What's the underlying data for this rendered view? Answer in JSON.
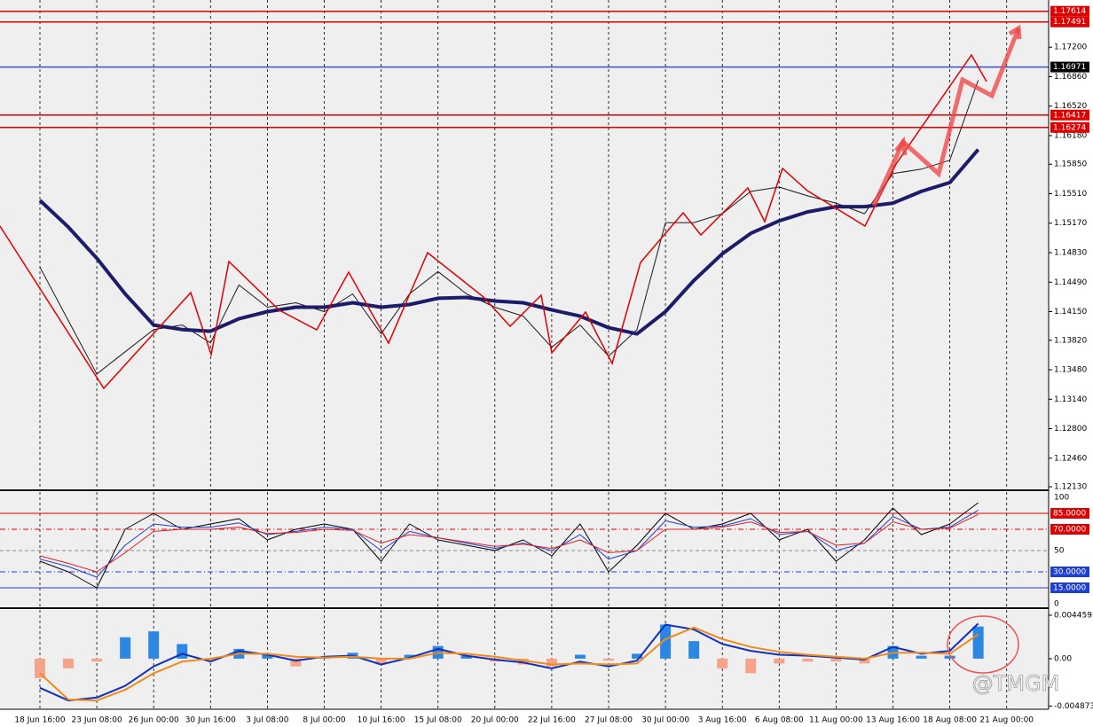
{
  "chart_data": [
    {
      "type": "line",
      "categories": [
        "18 Jun 16:00",
        null,
        "23 Jun 08:00",
        null,
        "26 Jun 00:00",
        null,
        "30 Jun 16:00",
        null,
        "3 Jul 08:00",
        null,
        "8 Jul 00:00",
        null,
        "10 Jul 16:00",
        null,
        "15 Jul 08:00",
        null,
        "20 Jul 00:00",
        null,
        "22 Jul 16:00",
        null,
        "27 Jul 08:00",
        null,
        "30 Jul 00:00",
        null,
        "3 Aug 16:00",
        null,
        "6 Aug 08:00",
        null,
        "11 Aug 00:00",
        null,
        "13 Aug 16:00",
        null,
        "18 Aug 08:00",
        null,
        "21 Aug 00:00"
      ],
      "series": [
        {
          "color": "#1a1a1a",
          "values": [
            1.14663,
            1.14047,
            1.13431,
            1.13687,
            1.13944,
            1.13996,
            1.1379,
            1.14458,
            1.14201,
            1.14252,
            1.1415,
            1.14355,
            1.13893,
            1.14355,
            1.14612,
            1.14355,
            1.14201,
            1.14098,
            1.13739,
            1.13996,
            1.13636,
            1.13944,
            1.15177,
            1.15177,
            1.15279,
            1.15536,
            1.15587,
            1.15485,
            1.15402,
            1.15279,
            1.15742,
            1.15793,
            1.15896,
            1.1682,
            null
          ]
        },
        {
          "color": "#1c1c6a",
          "values": [
            1.15433,
            1.15125,
            1.14766,
            1.14355,
            1.13996,
            1.13944,
            1.13924,
            1.14067,
            1.1415,
            1.14201,
            1.14201,
            1.14252,
            1.14201,
            1.14232,
            1.14304,
            1.14314,
            1.14273,
            1.14252,
            1.1417,
            1.14098,
            1.13965,
            1.13893,
            1.1415,
            1.14509,
            1.14818,
            1.15053,
            1.15197,
            1.153,
            1.15361,
            1.15361,
            1.15402,
            1.15536,
            1.15639,
            1.16019,
            null
          ]
        }
      ],
      "ylim": [
        1.121,
        1.17744
      ],
      "yticks": [
        {
          "value": 1.172,
          "label": "1.17200"
        },
        {
          "value": 1.1686,
          "label": "1.16860"
        },
        {
          "value": 1.1652,
          "label": "1.16520"
        },
        {
          "value": 1.1618,
          "label": "1.16180"
        },
        {
          "value": 1.1585,
          "label": "1.15850"
        },
        {
          "value": 1.1551,
          "label": "1.15510"
        },
        {
          "value": 1.1517,
          "label": "1.15170"
        },
        {
          "value": 1.1483,
          "label": "1.14830"
        },
        {
          "value": 1.1449,
          "label": "1.14490"
        },
        {
          "value": 1.1415,
          "label": "1.14150"
        },
        {
          "value": 1.1382,
          "label": "1.13820"
        },
        {
          "value": 1.1348,
          "label": "1.13480"
        },
        {
          "value": 1.1314,
          "label": "1.13140"
        },
        {
          "value": 1.128,
          "label": "1.12800"
        },
        {
          "value": 1.1246,
          "label": "1.12460"
        },
        {
          "value": 1.1213,
          "label": "1.12130"
        }
      ],
      "levels": [
        {
          "value": 1.17614,
          "color": "#e00000",
          "box": "#e00000"
        },
        {
          "value": 1.17491,
          "color": "#e00000",
          "box": "#e00000"
        },
        {
          "value": 1.16971,
          "color": "#3355cc",
          "box": "#000000"
        },
        {
          "value": 1.16417,
          "color": "#e00000",
          "box": "#e00000"
        },
        {
          "value": 1.16274,
          "color": "#e00000",
          "box": "#e00000"
        }
      ]
    },
    {
      "type": "line",
      "series": [
        {
          "color": "#000000",
          "values": [
            40,
            30,
            15,
            70,
            85,
            70,
            75,
            80,
            60,
            70,
            75,
            70,
            40,
            75,
            60,
            55,
            50,
            60,
            45,
            75,
            30,
            55,
            85,
            70,
            75,
            85,
            60,
            70,
            40,
            60,
            90,
            65,
            75,
            95,
            null
          ]
        },
        {
          "color": "#1f3fd0",
          "values": [
            42,
            35,
            25,
            55,
            75,
            72,
            72,
            76,
            65,
            68,
            72,
            70,
            50,
            68,
            62,
            57,
            52,
            57,
            50,
            65,
            42,
            50,
            78,
            72,
            73,
            80,
            65,
            68,
            50,
            57,
            82,
            70,
            72,
            88,
            null
          ]
        },
        {
          "color": "#e02020",
          "values": [
            45,
            38,
            30,
            48,
            68,
            70,
            70,
            72,
            66,
            67,
            70,
            69,
            57,
            65,
            62,
            58,
            54,
            56,
            52,
            60,
            48,
            50,
            70,
            70,
            72,
            77,
            67,
            68,
            55,
            57,
            77,
            70,
            71,
            84,
            null
          ]
        }
      ],
      "ylim": [
        0,
        100
      ],
      "yticks": [
        100,
        {
          "value": 85,
          "label": "85.0000"
        },
        {
          "value": 70,
          "label": "70.0000"
        },
        50,
        {
          "value": 30,
          "label": "30.0000"
        },
        {
          "value": 15,
          "label": "15.0000"
        },
        0
      ],
      "tick_colors": [
        "#000000",
        "#e00000",
        "#e00000",
        "#888888",
        "#1f3fd0",
        "#1f3fd0",
        "#000000"
      ],
      "tick_styles": [
        "none",
        "solid",
        "dashdot",
        "dash",
        "dashdot",
        "solid",
        "none"
      ]
    },
    {
      "type": "macd",
      "series": [
        {
          "type": "bar",
          "color": "#2b86e4",
          "negative_color": "#f5a48a",
          "values": [
            -0.002,
            -0.001,
            -0.0003,
            0.0022,
            0.0028,
            0.0015,
            -0.0002,
            0.001,
            0.0005,
            -0.0008,
            0.0002,
            0.0006,
            -0.0006,
            0.0004,
            0.0013,
            0.0003,
            -0.0003,
            -0.0006,
            -0.0008,
            0.0004,
            -0.0002,
            0.0005,
            0.0035,
            0.0018,
            -0.001,
            -0.0015,
            -0.0005,
            -0.0003,
            -0.0003,
            -0.0005,
            0.0013,
            0.0003,
            0.0003,
            0.0033,
            null
          ]
        },
        {
          "type": "line",
          "color": "#1030c0",
          "values": [
            -0.003,
            -0.0043,
            -0.004,
            -0.0028,
            -0.0008,
            0.0005,
            -0.0003,
            0.0008,
            0.0004,
            -0.0002,
            0.0002,
            0.0003,
            -0.0006,
            0.0001,
            0.001,
            0.0003,
            -0.0001,
            -0.0004,
            -0.001,
            -0.0003,
            -0.0008,
            -0.0002,
            0.0035,
            0.003,
            0.0015,
            0.0008,
            0.0004,
            0.0003,
            0.0001,
            -0.0001,
            0.0012,
            0.0005,
            0.0008,
            0.0036,
            null
          ]
        },
        {
          "type": "line",
          "color": "#f08a1a",
          "values": [
            -0.0015,
            -0.0042,
            -0.0043,
            -0.0032,
            -0.0015,
            -0.0003,
            0,
            0.0005,
            0.0005,
            0.0002,
            0.0001,
            0.0002,
            0,
            0,
            0.0006,
            0.0005,
            0.0002,
            -0.0002,
            -0.0006,
            -0.0005,
            -0.0006,
            -0.0005,
            0.002,
            0.0032,
            0.002,
            0.0012,
            0.0007,
            0.0004,
            0.0002,
            0,
            0.0006,
            0.0006,
            0.0005,
            0.0025,
            null
          ]
        }
      ],
      "ylim": [
        -0.0052,
        0.005
      ],
      "yticks": [
        0.0044593,
        {
          "value": 0,
          "label": "0.00"
        },
        -0.004873
      ]
    }
  ],
  "watermark": "@TMGM"
}
